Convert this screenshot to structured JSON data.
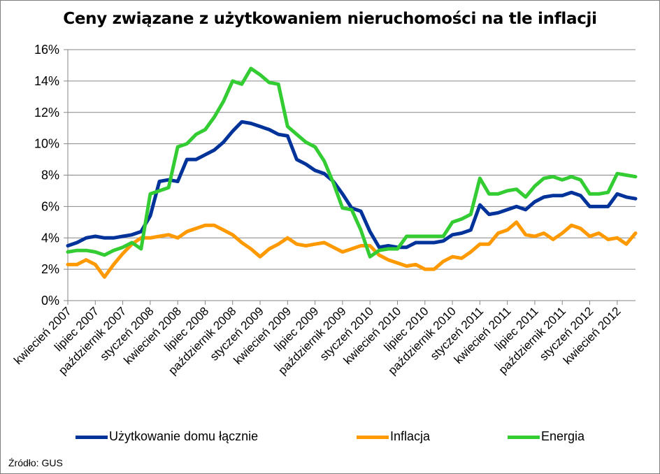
{
  "chart_data": {
    "type": "line",
    "title": "Ceny związane z użytkowaniem nieruchomości na tle inflacji",
    "xlabel": "",
    "ylabel": "",
    "ylim": [
      0,
      16
    ],
    "y_ticks": [
      "0%",
      "2%",
      "4%",
      "6%",
      "8%",
      "10%",
      "12%",
      "14%",
      "16%"
    ],
    "grid": true,
    "legend_position": "bottom",
    "x": [
      "kwiecień 2007",
      "maj 2007",
      "czerwiec 2007",
      "lipiec 2007",
      "sierpień 2007",
      "wrzesień 2007",
      "październik 2007",
      "listopad 2007",
      "grudzień 2007",
      "styczeń 2008",
      "luty 2008",
      "marzec 2008",
      "kwiecień 2008",
      "maj 2008",
      "czerwiec 2008",
      "lipiec 2008",
      "sierpień 2008",
      "wrzesień 2008",
      "październik 2008",
      "listopad 2008",
      "grudzień 2008",
      "styczeń 2009",
      "luty 2009",
      "marzec 2009",
      "kwiecień 2009",
      "maj 2009",
      "czerwiec 2009",
      "lipiec 2009",
      "sierpień 2009",
      "wrzesień 2009",
      "październik 2009",
      "listopad 2009",
      "grudzień 2009",
      "styczeń 2010",
      "luty 2010",
      "marzec 2010",
      "kwiecień 2010",
      "maj 2010",
      "czerwiec 2010",
      "lipiec 2010",
      "sierpień 2010",
      "wrzesień 2010",
      "październik 2010",
      "listopad 2010",
      "grudzień 2010",
      "styczeń 2011",
      "luty 2011",
      "marzec 2011",
      "kwiecień 2011",
      "maj 2011",
      "czerwiec 2011",
      "lipiec 2011",
      "sierpień 2011",
      "wrzesień 2011",
      "październik 2011",
      "listopad 2011",
      "grudzień 2011",
      "styczeń 2012",
      "luty 2012",
      "marzec 2012",
      "kwiecień 2012",
      "maj 2012",
      "czerwiec 2012"
    ],
    "x_tick_labels": [
      "kwiecień 2007",
      "lipiec 2007",
      "październik 2007",
      "styczeń 2008",
      "kwiecień 2008",
      "lipiec 2008",
      "październik 2008",
      "styczeń 2009",
      "kwiecień 2009",
      "lipiec 2009",
      "październik 2009",
      "styczeń 2010",
      "kwiecień 2010",
      "lipiec 2010",
      "październik 2010",
      "styczeń 2011",
      "kwiecień 2011",
      "lipiec 2011",
      "październik 2011",
      "styczeń 2012",
      "kwiecień 2012"
    ],
    "series": [
      {
        "name": "Użytkowanie domu łącznie",
        "color": "#00339a",
        "values": [
          3.5,
          3.7,
          4.0,
          4.1,
          4.0,
          4.0,
          4.1,
          4.2,
          4.4,
          5.4,
          7.6,
          7.7,
          7.6,
          9.0,
          9.0,
          9.3,
          9.6,
          10.1,
          10.8,
          11.4,
          11.3,
          11.1,
          10.9,
          10.6,
          10.5,
          9.0,
          8.7,
          8.3,
          8.1,
          7.6,
          6.8,
          5.9,
          5.7,
          4.4,
          3.4,
          3.5,
          3.4,
          3.4,
          3.7,
          3.7,
          3.7,
          3.8,
          4.2,
          4.3,
          4.5,
          6.1,
          5.5,
          5.6,
          5.8,
          6.0,
          5.8,
          6.3,
          6.6,
          6.7,
          6.7,
          6.9,
          6.7,
          6.0,
          6.0,
          6.0,
          6.8,
          6.6,
          6.5
        ]
      },
      {
        "name": "Inflacja",
        "color": "#ff9900",
        "values": [
          2.3,
          2.3,
          2.6,
          2.3,
          1.5,
          2.3,
          3.0,
          3.6,
          4.0,
          4.0,
          4.1,
          4.2,
          4.0,
          4.4,
          4.6,
          4.8,
          4.8,
          4.5,
          4.2,
          3.7,
          3.3,
          2.8,
          3.3,
          3.6,
          4.0,
          3.6,
          3.5,
          3.6,
          3.7,
          3.4,
          3.1,
          3.3,
          3.5,
          3.5,
          2.9,
          2.6,
          2.4,
          2.2,
          2.3,
          2.0,
          2.0,
          2.5,
          2.8,
          2.7,
          3.1,
          3.6,
          3.6,
          4.3,
          4.5,
          5.0,
          4.2,
          4.1,
          4.3,
          3.9,
          4.3,
          4.8,
          4.6,
          4.1,
          4.3,
          3.9,
          4.0,
          3.6,
          4.3
        ]
      },
      {
        "name": "Energia",
        "color": "#33cc33",
        "values": [
          3.1,
          3.2,
          3.2,
          3.1,
          2.9,
          3.2,
          3.4,
          3.7,
          3.3,
          6.8,
          7.0,
          7.2,
          9.8,
          10.0,
          10.6,
          10.9,
          11.7,
          12.7,
          14.0,
          13.8,
          14.8,
          14.4,
          13.9,
          13.8,
          11.1,
          10.6,
          10.1,
          9.8,
          8.9,
          7.5,
          5.9,
          5.8,
          4.5,
          2.8,
          3.2,
          3.3,
          3.3,
          4.1,
          4.1,
          4.1,
          4.1,
          4.1,
          5.0,
          5.2,
          5.5,
          7.8,
          6.8,
          6.8,
          7.0,
          7.1,
          6.6,
          7.3,
          7.8,
          7.9,
          7.7,
          7.9,
          7.7,
          6.8,
          6.8,
          6.9,
          8.1,
          8.0,
          7.9
        ]
      }
    ]
  },
  "source": "Źródło: GUS"
}
